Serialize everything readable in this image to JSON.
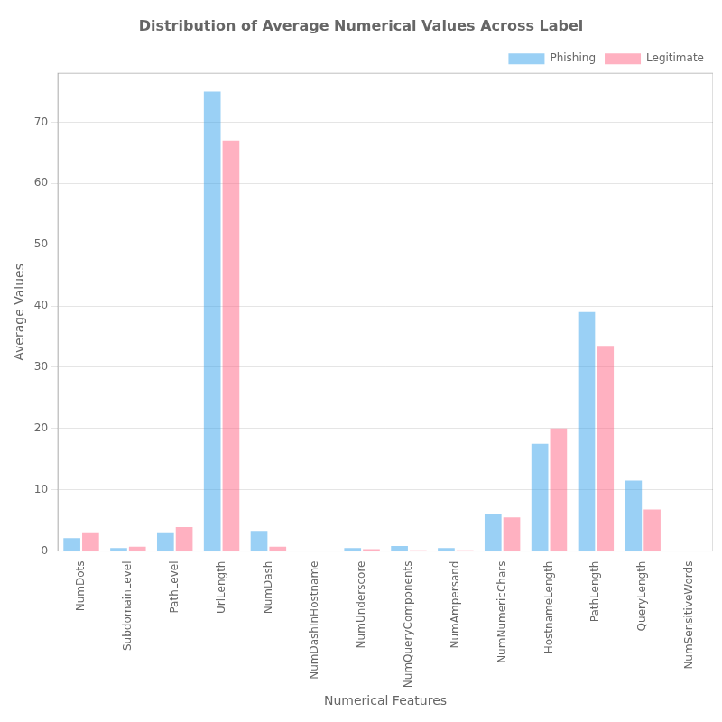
{
  "chart_data": {
    "type": "bar",
    "title": "Distribution of Average Numerical Values Across Label",
    "xlabel": "Numerical Features",
    "ylabel": "Average Values",
    "categories": [
      "NumDots",
      "SubdomainLevel",
      "PathLevel",
      "UrlLength",
      "NumDash",
      "NumDashInHostname",
      "NumUnderscore",
      "NumQueryComponents",
      "NumAmpersand",
      "NumNumericChars",
      "HostnameLength",
      "PathLength",
      "QueryLength",
      "NumSensitiveWords"
    ],
    "series": [
      {
        "name": "Phishing",
        "values": [
          2.1,
          0.5,
          2.9,
          75.0,
          3.3,
          0.05,
          0.5,
          0.8,
          0.5,
          6.0,
          17.5,
          39.0,
          11.5,
          0.05
        ]
      },
      {
        "name": "Legitimate",
        "values": [
          2.9,
          0.7,
          3.9,
          67.0,
          0.7,
          0.05,
          0.3,
          0.1,
          0.1,
          5.5,
          20.0,
          33.5,
          6.8,
          0.05
        ]
      }
    ],
    "ylim": [
      0,
      78
    ],
    "yticks": [
      0,
      10,
      20,
      30,
      40,
      50,
      60,
      70
    ],
    "grid": true,
    "legend": "upper right"
  }
}
